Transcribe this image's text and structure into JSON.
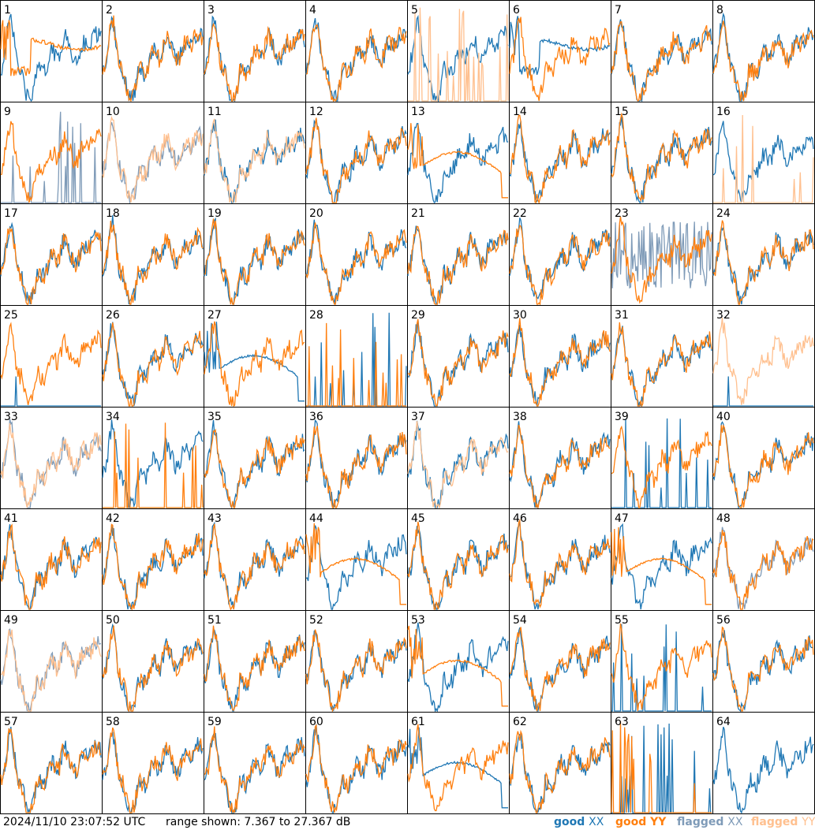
{
  "footer": {
    "timestamp": "2024/11/10 23:07:52 UTC",
    "range_label": "range shown: 7.367 to 27.367 dB"
  },
  "legend": [
    {
      "label_a": "good",
      "label_b": "XX",
      "color_a": "#1f77b4",
      "color_b": "#1f77b4"
    },
    {
      "label_a": "good",
      "label_b": "YY",
      "color_a": "#ff7f0e",
      "color_b": "#ff7f0e"
    },
    {
      "label_a": "flagged",
      "label_b": "XX",
      "color_a": "#7f9bb8",
      "color_b": "#7f9bb8"
    },
    {
      "label_a": "flagged",
      "label_b": "YY",
      "color_a": "#ffc08f",
      "color_b": "#ffc08f"
    }
  ],
  "colors": {
    "good_xx": "#1f77b4",
    "good_yy": "#ff7f0e",
    "flagged_xx": "#7f9bb8",
    "flagged_yy": "#ffc08f"
  },
  "chart_data": {
    "type": "line",
    "layout": "8x8 small multiples",
    "ylim_db": [
      7.367,
      27.367
    ],
    "series_names": [
      "XX",
      "YY"
    ],
    "panels": [
      {
        "id": 1,
        "xx": "good",
        "yy": "good",
        "xx_shape": "normal",
        "yy_shape": "dip"
      },
      {
        "id": 2,
        "xx": "good",
        "yy": "good",
        "xx_shape": "normal",
        "yy_shape": "normal"
      },
      {
        "id": 3,
        "xx": "good",
        "yy": "good",
        "xx_shape": "normal",
        "yy_shape": "normal"
      },
      {
        "id": 4,
        "xx": "good",
        "yy": "good",
        "xx_shape": "normal",
        "yy_shape": "normal"
      },
      {
        "id": 5,
        "xx": "good",
        "yy": "flagged",
        "xx_shape": "normal",
        "yy_shape": "spikes"
      },
      {
        "id": 6,
        "xx": "good",
        "yy": "good",
        "xx_shape": "dip",
        "yy_shape": "normal"
      },
      {
        "id": 7,
        "xx": "good",
        "yy": "good",
        "xx_shape": "normal",
        "yy_shape": "normal"
      },
      {
        "id": 8,
        "xx": "good",
        "yy": "good",
        "xx_shape": "normal",
        "yy_shape": "normal"
      },
      {
        "id": 9,
        "xx": "flagged",
        "yy": "good",
        "xx_shape": "spikes",
        "yy_shape": "normal"
      },
      {
        "id": 10,
        "xx": "flagged",
        "yy": "flagged",
        "xx_shape": "normal",
        "yy_shape": "normal"
      },
      {
        "id": 11,
        "xx": "good",
        "yy": "flagged",
        "xx_shape": "normal",
        "yy_shape": "normal"
      },
      {
        "id": 12,
        "xx": "good",
        "yy": "good",
        "xx_shape": "normal",
        "yy_shape": "normal"
      },
      {
        "id": 13,
        "xx": "good",
        "yy": "good",
        "xx_shape": "normal",
        "yy_shape": "smooth"
      },
      {
        "id": 14,
        "xx": "good",
        "yy": "good",
        "xx_shape": "normal",
        "yy_shape": "normal"
      },
      {
        "id": 15,
        "xx": "good",
        "yy": "good",
        "xx_shape": "normal",
        "yy_shape": "normal"
      },
      {
        "id": 16,
        "xx": "good",
        "yy": "flagged",
        "xx_shape": "normal",
        "yy_shape": "spikes"
      },
      {
        "id": 17,
        "xx": "good",
        "yy": "good",
        "xx_shape": "normal",
        "yy_shape": "normal"
      },
      {
        "id": 18,
        "xx": "good",
        "yy": "good",
        "xx_shape": "normal",
        "yy_shape": "normal"
      },
      {
        "id": 19,
        "xx": "good",
        "yy": "good",
        "xx_shape": "normal",
        "yy_shape": "normal"
      },
      {
        "id": 20,
        "xx": "good",
        "yy": "good",
        "xx_shape": "normal",
        "yy_shape": "normal"
      },
      {
        "id": 21,
        "xx": "good",
        "yy": "good",
        "xx_shape": "normal",
        "yy_shape": "normal"
      },
      {
        "id": 22,
        "xx": "good",
        "yy": "good",
        "xx_shape": "normal",
        "yy_shape": "normal"
      },
      {
        "id": 23,
        "xx": "flagged",
        "yy": "good",
        "xx_shape": "noisy",
        "yy_shape": "normal"
      },
      {
        "id": 24,
        "xx": "good",
        "yy": "good",
        "xx_shape": "normal",
        "yy_shape": "normal"
      },
      {
        "id": 25,
        "xx": "good",
        "yy": "good",
        "xx_shape": "spike1",
        "yy_shape": "normal"
      },
      {
        "id": 26,
        "xx": "good",
        "yy": "good",
        "xx_shape": "normal",
        "yy_shape": "normal"
      },
      {
        "id": 27,
        "xx": "good",
        "yy": "good",
        "xx_shape": "smooth",
        "yy_shape": "normal"
      },
      {
        "id": 28,
        "xx": "good",
        "yy": "good",
        "xx_shape": "spikes",
        "yy_shape": "spikes"
      },
      {
        "id": 29,
        "xx": "good",
        "yy": "good",
        "xx_shape": "normal",
        "yy_shape": "normal"
      },
      {
        "id": 30,
        "xx": "good",
        "yy": "good",
        "xx_shape": "normal",
        "yy_shape": "normal"
      },
      {
        "id": 31,
        "xx": "good",
        "yy": "good",
        "xx_shape": "normal",
        "yy_shape": "normal"
      },
      {
        "id": 32,
        "xx": "good",
        "yy": "flagged",
        "xx_shape": "spike1",
        "yy_shape": "normal"
      },
      {
        "id": 33,
        "xx": "flagged",
        "yy": "flagged",
        "xx_shape": "normal",
        "yy_shape": "normal"
      },
      {
        "id": 34,
        "xx": "good",
        "yy": "good",
        "xx_shape": "normal",
        "yy_shape": "spikes"
      },
      {
        "id": 35,
        "xx": "good",
        "yy": "good",
        "xx_shape": "normal",
        "yy_shape": "normal"
      },
      {
        "id": 36,
        "xx": "good",
        "yy": "good",
        "xx_shape": "normal",
        "yy_shape": "normal"
      },
      {
        "id": 37,
        "xx": "good",
        "yy": "flagged",
        "xx_shape": "normal",
        "yy_shape": "normal"
      },
      {
        "id": 38,
        "xx": "good",
        "yy": "good",
        "xx_shape": "normal",
        "yy_shape": "normal"
      },
      {
        "id": 39,
        "xx": "good",
        "yy": "good",
        "xx_shape": "spikes",
        "yy_shape": "normal"
      },
      {
        "id": 40,
        "xx": "good",
        "yy": "good",
        "xx_shape": "normal",
        "yy_shape": "normal"
      },
      {
        "id": 41,
        "xx": "good",
        "yy": "good",
        "xx_shape": "normal",
        "yy_shape": "normal"
      },
      {
        "id": 42,
        "xx": "good",
        "yy": "good",
        "xx_shape": "normal",
        "yy_shape": "normal"
      },
      {
        "id": 43,
        "xx": "good",
        "yy": "good",
        "xx_shape": "normal",
        "yy_shape": "normal"
      },
      {
        "id": 44,
        "xx": "good",
        "yy": "good",
        "xx_shape": "normal",
        "yy_shape": "smooth"
      },
      {
        "id": 45,
        "xx": "good",
        "yy": "good",
        "xx_shape": "normal",
        "yy_shape": "normal"
      },
      {
        "id": 46,
        "xx": "good",
        "yy": "good",
        "xx_shape": "normal",
        "yy_shape": "normal"
      },
      {
        "id": 47,
        "xx": "good",
        "yy": "good",
        "xx_shape": "normal",
        "yy_shape": "smooth"
      },
      {
        "id": 48,
        "xx": "flagged",
        "yy": "good",
        "xx_shape": "normal",
        "yy_shape": "normal"
      },
      {
        "id": 49,
        "xx": "flagged",
        "yy": "flagged",
        "xx_shape": "normal",
        "yy_shape": "normal"
      },
      {
        "id": 50,
        "xx": "good",
        "yy": "good",
        "xx_shape": "normal",
        "yy_shape": "normal"
      },
      {
        "id": 51,
        "xx": "good",
        "yy": "good",
        "xx_shape": "normal",
        "yy_shape": "normal"
      },
      {
        "id": 52,
        "xx": "good",
        "yy": "good",
        "xx_shape": "normal",
        "yy_shape": "normal"
      },
      {
        "id": 53,
        "xx": "good",
        "yy": "good",
        "xx_shape": "normal",
        "yy_shape": "smooth"
      },
      {
        "id": 54,
        "xx": "good",
        "yy": "good",
        "xx_shape": "normal",
        "yy_shape": "normal"
      },
      {
        "id": 55,
        "xx": "good",
        "yy": "good",
        "xx_shape": "spikes",
        "yy_shape": "normal"
      },
      {
        "id": 56,
        "xx": "good",
        "yy": "good",
        "xx_shape": "normal",
        "yy_shape": "normal"
      },
      {
        "id": 57,
        "xx": "good",
        "yy": "good",
        "xx_shape": "normal",
        "yy_shape": "normal"
      },
      {
        "id": 58,
        "xx": "good",
        "yy": "good",
        "xx_shape": "normal",
        "yy_shape": "normal"
      },
      {
        "id": 59,
        "xx": "good",
        "yy": "good",
        "xx_shape": "normal",
        "yy_shape": "normal"
      },
      {
        "id": 60,
        "xx": "good",
        "yy": "good",
        "xx_shape": "normal",
        "yy_shape": "normal"
      },
      {
        "id": 61,
        "xx": "good",
        "yy": "good",
        "xx_shape": "smooth",
        "yy_shape": "normal"
      },
      {
        "id": 62,
        "xx": "good",
        "yy": "good",
        "xx_shape": "normal",
        "yy_shape": "normal"
      },
      {
        "id": 63,
        "xx": "good",
        "yy": "good",
        "xx_shape": "spikes",
        "yy_shape": "spikes"
      },
      {
        "id": 64,
        "xx": "good",
        "yy": "good",
        "xx_shape": "normal",
        "yy_shape": "none"
      }
    ]
  }
}
